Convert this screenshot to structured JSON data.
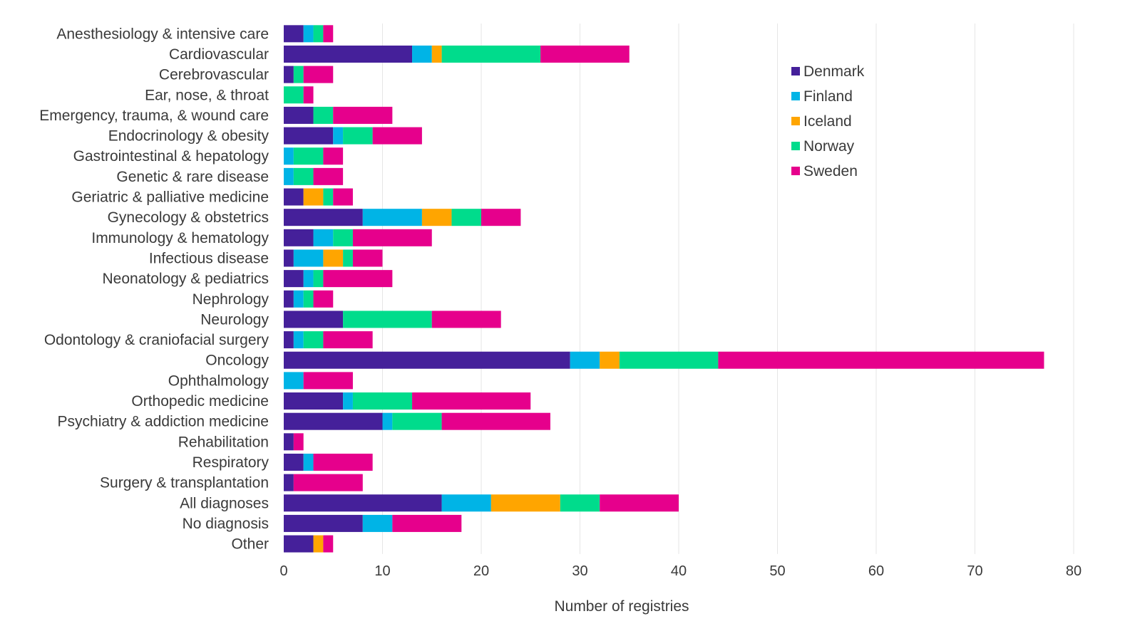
{
  "chart_data": {
    "type": "bar",
    "orientation": "horizontal",
    "stacked": true,
    "title": "",
    "xlabel": "Number of registries",
    "ylabel": "",
    "xlim": [
      0,
      80
    ],
    "xticks": [
      0,
      10,
      20,
      30,
      40,
      50,
      60,
      70,
      80
    ],
    "grid": true,
    "legend_position": "top-right",
    "categories": [
      "Anesthesiology & intensive care",
      "Cardiovascular",
      "Cerebrovascular",
      "Ear, nose, & throat",
      "Emergency, trauma, & wound care",
      "Endocrinology & obesity",
      "Gastrointestinal & hepatology",
      "Genetic & rare disease",
      "Geriatric & palliative medicine",
      "Gynecology & obstetrics",
      "Immunology & hematology",
      "Infectious disease",
      "Neonatology & pediatrics",
      "Nephrology",
      "Neurology",
      "Odontology & craniofacial surgery",
      "Oncology",
      "Ophthalmology",
      "Orthopedic medicine",
      "Psychiatry & addiction medicine",
      "Rehabilitation",
      "Respiratory",
      "Surgery & transplantation",
      "All diagnoses",
      "No diagnosis",
      "Other"
    ],
    "series": [
      {
        "name": "Denmark",
        "color": "#45209a",
        "values": [
          2,
          13,
          1,
          0,
          3,
          5,
          0,
          0,
          2,
          8,
          3,
          1,
          2,
          1,
          6,
          1,
          29,
          0,
          6,
          10,
          1,
          2,
          1,
          16,
          8,
          3
        ]
      },
      {
        "name": "Finland",
        "color": "#00b4e6",
        "values": [
          1,
          2,
          0,
          0,
          0,
          1,
          1,
          1,
          0,
          6,
          2,
          3,
          1,
          1,
          0,
          1,
          3,
          2,
          1,
          1,
          0,
          1,
          0,
          5,
          3,
          0
        ]
      },
      {
        "name": "Iceland",
        "color": "#ffa500",
        "values": [
          0,
          1,
          0,
          0,
          0,
          0,
          0,
          0,
          2,
          3,
          0,
          2,
          0,
          0,
          0,
          0,
          2,
          0,
          0,
          0,
          0,
          0,
          0,
          7,
          0,
          1
        ]
      },
      {
        "name": "Norway",
        "color": "#00dc8c",
        "values": [
          1,
          10,
          1,
          2,
          2,
          3,
          3,
          2,
          1,
          3,
          2,
          1,
          1,
          1,
          9,
          2,
          10,
          0,
          6,
          5,
          0,
          0,
          0,
          4,
          0,
          0
        ]
      },
      {
        "name": "Sweden",
        "color": "#e6008c",
        "values": [
          1,
          9,
          3,
          1,
          6,
          5,
          2,
          3,
          2,
          4,
          8,
          3,
          7,
          2,
          7,
          5,
          33,
          5,
          12,
          11,
          1,
          6,
          7,
          8,
          7,
          1
        ]
      }
    ]
  }
}
